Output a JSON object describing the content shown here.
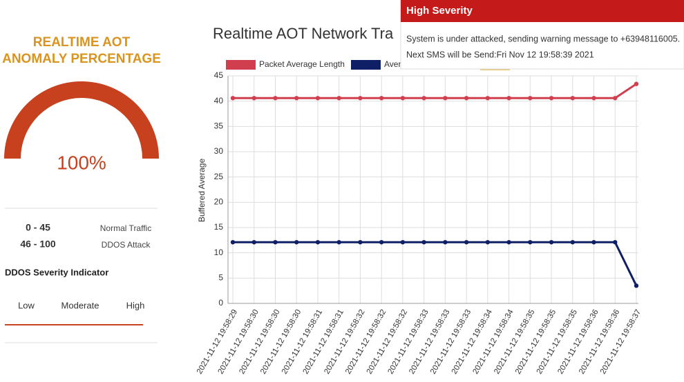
{
  "panel": {
    "title_lines": [
      "REALTIME AOT",
      "ANOMALY PERCENTAGE"
    ],
    "gauge": {
      "value": 100,
      "value_label": "100%"
    },
    "ranges": [
      {
        "min": 0,
        "max": 45,
        "range_label": "0 - 45",
        "label": "Normal Traffic"
      },
      {
        "min": 46,
        "max": 100,
        "range_label": "46 - 100",
        "label": "DDOS Attack"
      }
    ],
    "indicator_title": "DDOS Severity Indicator",
    "indicator_levels": [
      "Low",
      "Moderate",
      "High"
    ]
  },
  "notification": {
    "title": "High Severity",
    "message": "System is under attacked, sending warning message to +63948116005.",
    "next": "Next SMS will be Send:Fri Nov 12 19:58:39 2021"
  },
  "chart_data": {
    "type": "line",
    "title": "Realtime AOT Network Tra",
    "y_label": "Buffered Average",
    "categories": [
      "2021-11-12 19:58:29",
      "2021-11-12 19:58:30",
      "2021-11-12 19:58:30",
      "2021-11-12 19:58:30",
      "2021-11-12 19:58:31",
      "2021-11-12 19:58:31",
      "2021-11-12 19:58:32",
      "2021-11-12 19:58:32",
      "2021-11-12 19:58:32",
      "2021-11-12 19:58:33",
      "2021-11-12 19:58:33",
      "2021-11-12 19:58:33",
      "2021-11-12 19:58:34",
      "2021-11-12 19:58:34",
      "2021-11-12 19:58:35",
      "2021-11-12 19:58:35",
      "2021-11-12 19:58:35",
      "2021-11-12 19:58:36",
      "2021-11-12 19:58:36",
      "2021-11-12 19:58:37"
    ],
    "series": [
      {
        "name": "Packet Average Length",
        "color": "#d13f4f",
        "values": [
          40.6,
          40.6,
          40.6,
          40.6,
          40.6,
          40.6,
          40.6,
          40.6,
          40.6,
          40.6,
          40.6,
          40.6,
          40.6,
          40.6,
          40.6,
          40.6,
          40.6,
          40.6,
          40.6,
          43.4
        ]
      },
      {
        "name": "Aver",
        "color": "#0f1f66",
        "values": [
          12.1,
          12.1,
          12.1,
          12.1,
          12.1,
          12.1,
          12.1,
          12.1,
          12.1,
          12.1,
          12.1,
          12.1,
          12.1,
          12.1,
          12.1,
          12.1,
          12.1,
          12.1,
          12.1,
          3.5
        ]
      }
    ],
    "ylim": [
      0,
      45
    ],
    "yticks": [
      0,
      5,
      10,
      15,
      20,
      25,
      30,
      35,
      40,
      45
    ],
    "grid": true
  }
}
